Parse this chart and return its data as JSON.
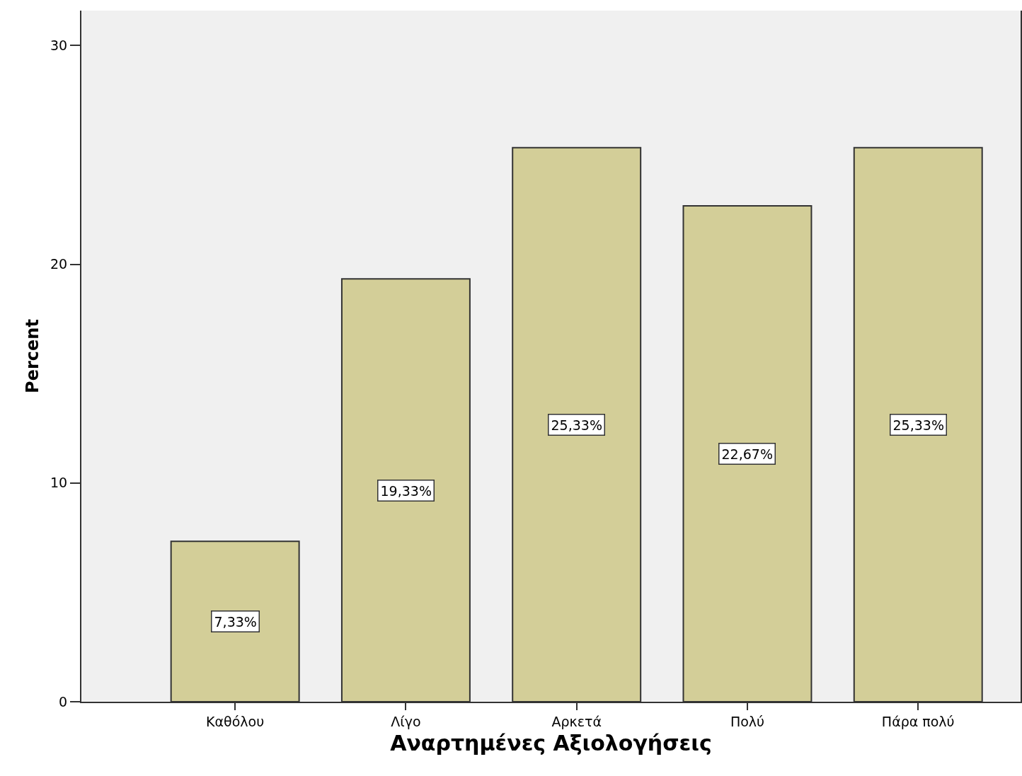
{
  "chart_data": {
    "type": "bar",
    "xlabel": "Αναρτημένες Αξιολογήσεις",
    "ylabel": "Percent",
    "categories": [
      "Καθόλου",
      "Λίγο",
      "Αρκετά",
      "Πολύ",
      "Πάρα πολύ"
    ],
    "values": [
      7.33,
      19.33,
      25.33,
      22.67,
      25.33
    ],
    "value_labels": [
      "7,33%",
      "19,33%",
      "25,33%",
      "22,67%",
      "25,33%"
    ],
    "color": "#d3ce98",
    "ylim": [
      0,
      31.6
    ],
    "yticks": [
      0,
      10,
      20,
      30
    ]
  }
}
